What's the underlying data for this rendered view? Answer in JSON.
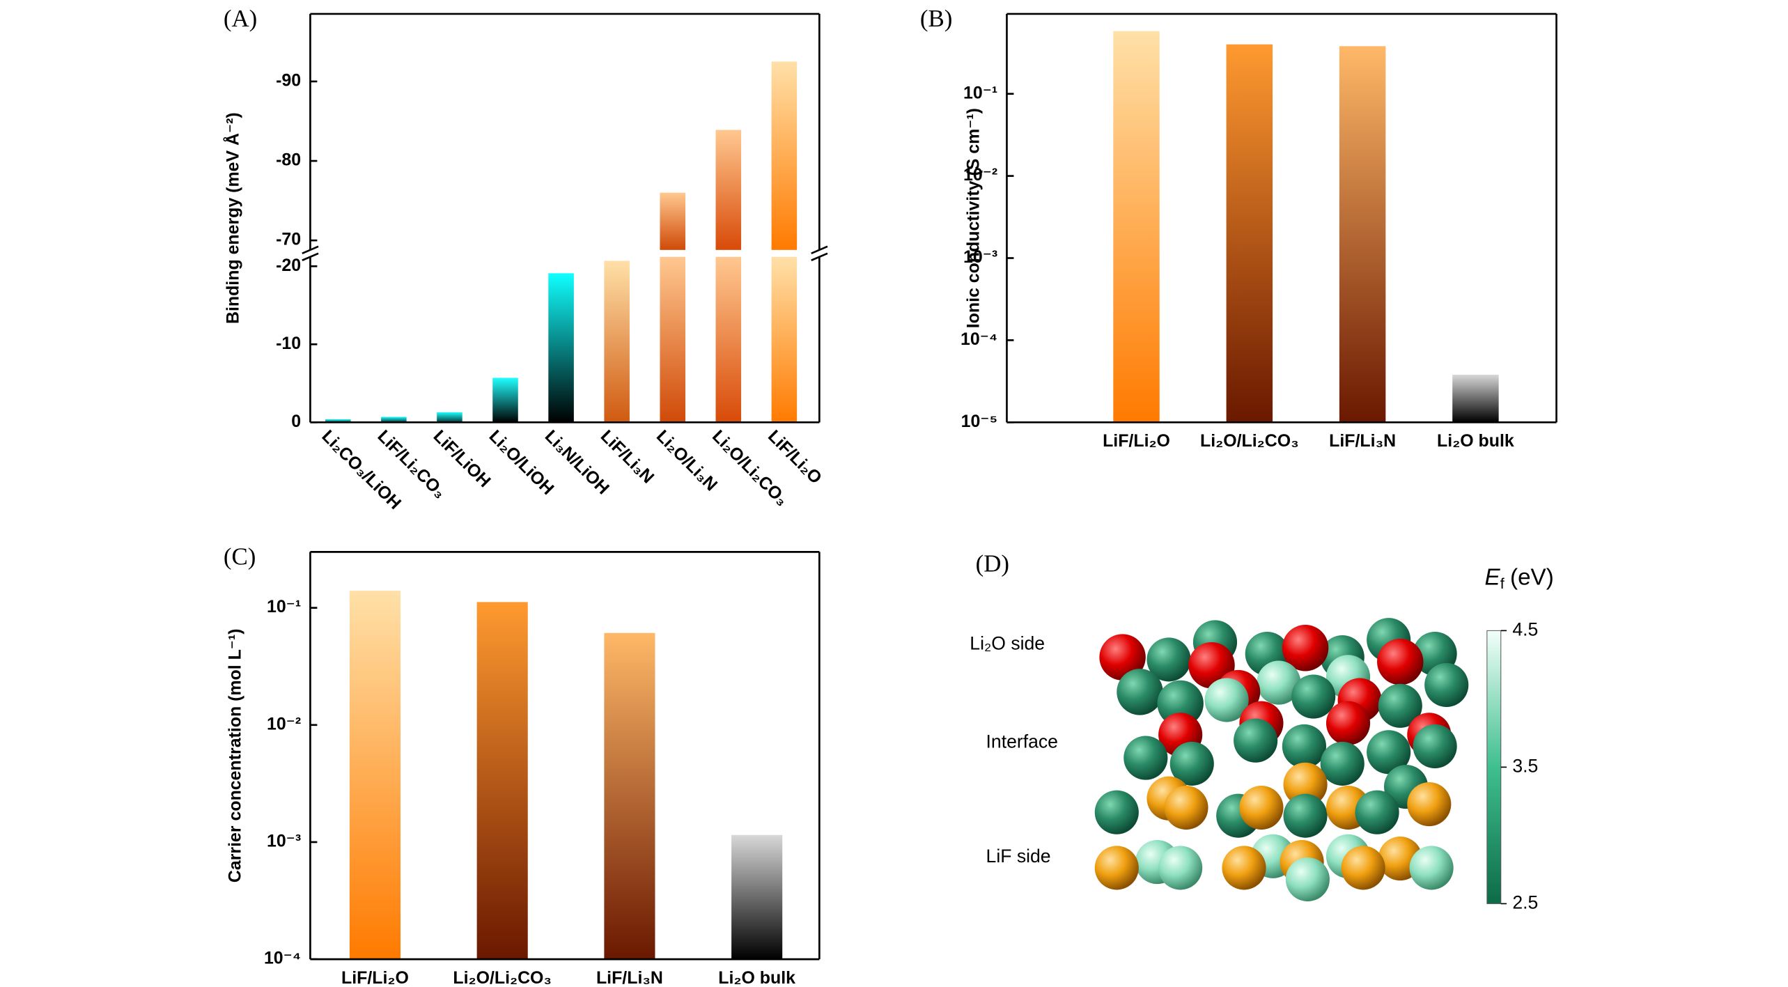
{
  "chart_data": [
    {
      "type": "bar",
      "panel_label": "(A)",
      "y_label": "Binding energy (meV Å⁻²)",
      "categories": [
        "Li₂CO₃/LiOH",
        "LiF/Li₂CO₃",
        "LiF/LiOH",
        "Li₂O/LiOH",
        "Li₃N/LiOH",
        "LiF/Li₃N",
        "Li₂O/Li₃N",
        "Li₂O/Li₂CO₃",
        "LiF/Li₂O"
      ],
      "values": [
        -0.4,
        -0.7,
        -1.3,
        -5.7,
        -19.1,
        -20.7,
        -76,
        -83.9,
        -92.5
      ],
      "colors": [
        [
          "#20ffff",
          "#003838"
        ],
        [
          "#20ffff",
          "#003838"
        ],
        [
          "#20ffff",
          "#003838"
        ],
        [
          "#20ffff",
          "#000000"
        ],
        [
          "#10ffff",
          "#000000"
        ],
        [
          "#ffe0a8",
          "#d05a10"
        ],
        [
          "#ffc890",
          "#d04a08"
        ],
        [
          "#ffc890",
          "#d84a08"
        ],
        [
          "#ffe0a8",
          "#ff7a00"
        ]
      ],
      "ylim": [
        0,
        -21.2
      ],
      "yticks": [
        0,
        -10,
        -20
      ],
      "ylim_upper": [
        -68.8,
        -98.5
      ],
      "yticks_upper": [
        -70,
        -80,
        -90
      ],
      "axis_break": true
    },
    {
      "type": "bar",
      "panel_label": "(B)",
      "y_label": "Ionic conductivity (S cm⁻¹)",
      "categories": [
        "LiF/Li₂O",
        "Li₂O/Li₂CO₃",
        "LiF/Li₃N",
        "Li₂O bulk"
      ],
      "values": [
        0.58,
        0.4,
        0.38,
        3.8e-05
      ],
      "colors": [
        [
          "#ffe0a8",
          "#ff7a00"
        ],
        [
          "#ff9a30",
          "#6a1800"
        ],
        [
          "#ffb868",
          "#6a1800"
        ],
        [
          "#d8d8d8",
          "#000000"
        ]
      ],
      "log_scale": true,
      "ylim": [
        1e-05,
        0.94
      ],
      "yticks": [
        {
          "value": 1e-05,
          "label": "10⁻⁵"
        },
        {
          "value": 0.0001,
          "label": "10⁻⁴"
        },
        {
          "value": 0.001,
          "label": "10⁻³"
        },
        {
          "value": 0.01,
          "label": "10⁻²"
        },
        {
          "value": 0.1,
          "label": "10⁻¹"
        }
      ]
    },
    {
      "type": "bar",
      "panel_label": "(C)",
      "y_label": "Carrier concentration (mol L⁻¹)",
      "categories": [
        "LiF/Li₂O",
        "Li₂O/Li₂CO₃",
        "LiF/Li₃N",
        "Li₂O bulk"
      ],
      "values": [
        0.14,
        0.112,
        0.061,
        0.00115
      ],
      "colors": [
        [
          "#ffe0a8",
          "#ff7a00"
        ],
        [
          "#ff9a30",
          "#6a1800"
        ],
        [
          "#ffb868",
          "#6a1800"
        ],
        [
          "#d8d8d8",
          "#000000"
        ]
      ],
      "log_scale": true,
      "ylim": [
        0.0001,
        0.3
      ],
      "yticks": [
        {
          "value": 0.0001,
          "label": "10⁻⁴"
        },
        {
          "value": 0.001,
          "label": "10⁻³"
        },
        {
          "value": 0.01,
          "label": "10⁻²"
        },
        {
          "value": 0.1,
          "label": "10⁻¹"
        }
      ]
    }
  ],
  "structure_panel": {
    "panel_label": "(D)",
    "layer_labels": [
      "Li₂O side",
      "Interface",
      "LiF side"
    ],
    "colorbar": {
      "symbol": "E",
      "subscript": "f",
      "unit": "(eV)",
      "lim": [
        2.5,
        4.5
      ],
      "ticks": [
        2.5,
        3.5,
        4.5
      ],
      "colors": [
        "#0d6b47",
        "#3fbf8f",
        "#f2fffa"
      ]
    }
  }
}
